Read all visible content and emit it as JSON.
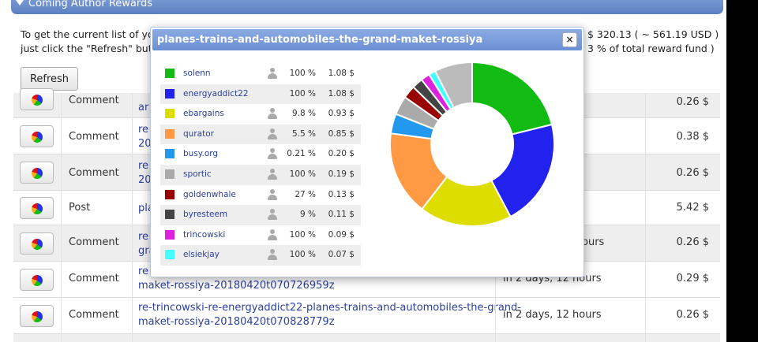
{
  "header": {
    "title": "Coming Author Rewards"
  },
  "info": {
    "line1": "To get the current list of you",
    "line2": "just click the \"Refresh\" butto",
    "line1_right": "$ 320.13  ( ~ 561.19 USD )",
    "line2_right": "3 % of total reward fund )"
  },
  "refresh_label": "Refresh",
  "rows": [
    {
      "type": "Comment",
      "link1": "ar",
      "link2": "",
      "time": "",
      "amount": "0.26 $"
    },
    {
      "type": "Comment",
      "link1": "re",
      "link2": "201",
      "time": "s",
      "amount": "0.38 $"
    },
    {
      "type": "Comment",
      "link1": "re",
      "link2": "201",
      "time": "s",
      "amount": "0.26 $"
    },
    {
      "type": "Post",
      "link1": "pla",
      "link2": "",
      "time": "",
      "amount": "5.42 $"
    },
    {
      "type": "Comment",
      "link1": "re",
      "link2": "gra",
      "time": "ours",
      "amount": "0.26 $"
    },
    {
      "type": "Comment",
      "link1": "re",
      "link2": "maket-rossiya-20180420t070726959z",
      "time": "in 2 days, 12 hours",
      "amount": "0.29 $"
    },
    {
      "type": "Comment",
      "link1": "re-trincowski-re-energyaddict22-planes-trains-and-automobiles-the-grand-",
      "link2": "maket-rossiya-20180420t070828779z",
      "time": "in 2 days, 12 hours",
      "amount": "0.26 $"
    }
  ],
  "popup": {
    "title": "planes-trains-and-automobiles-the-grand-maket-rossiya",
    "close_label": "×",
    "voters": [
      {
        "name": "solenn",
        "percent": "100 %",
        "amount": "1.08 $",
        "color": "#11bb11",
        "icon": "person-icon"
      },
      {
        "name": "energyaddict22",
        "percent": "100 %",
        "amount": "1.08 $",
        "color": "#2222ee",
        "icon": ""
      },
      {
        "name": "ebargains",
        "percent": "9.8 %",
        "amount": "0.93 $",
        "color": "#dddd00",
        "icon": "person-icon"
      },
      {
        "name": "qurator",
        "percent": "5.5 %",
        "amount": "0.85 $",
        "color": "#ff9944",
        "icon": "person-icon"
      },
      {
        "name": "busy.org",
        "percent": "0.21 %",
        "amount": "0.20 $",
        "color": "#2299ee",
        "icon": "person-icon"
      },
      {
        "name": "sportic",
        "percent": "100 %",
        "amount": "0.19 $",
        "color": "#aaaaaa",
        "icon": "person-icon"
      },
      {
        "name": "goldenwhale",
        "percent": "27 %",
        "amount": "0.13 $",
        "color": "#990000",
        "icon": "person-icon"
      },
      {
        "name": "byresteem",
        "percent": "9 %",
        "amount": "0.11 $",
        "color": "#444444",
        "icon": "person-icon"
      },
      {
        "name": "trincowski",
        "percent": "100 %",
        "amount": "0.09 $",
        "color": "#dd22dd",
        "icon": "person-icon"
      },
      {
        "name": "elsiekjay",
        "percent": "100 %",
        "amount": "0.07 $",
        "color": "#44ffff",
        "icon": "person-icon"
      }
    ]
  },
  "chart_data": {
    "type": "pie",
    "categories": [
      "solenn",
      "energyaddict22",
      "ebargains",
      "qurator",
      "busy.org",
      "sportic",
      "goldenwhale",
      "byresteem",
      "trincowski",
      "elsiekjay",
      "others"
    ],
    "values": [
      1.08,
      1.08,
      0.93,
      0.85,
      0.2,
      0.19,
      0.13,
      0.11,
      0.09,
      0.07,
      0.38
    ],
    "colors": [
      "#11bb11",
      "#2222ee",
      "#dddd00",
      "#ff9944",
      "#2299ee",
      "#aaaaaa",
      "#990000",
      "#444444",
      "#dd22dd",
      "#44ffff",
      "#bbbbbb"
    ],
    "donut": true
  }
}
